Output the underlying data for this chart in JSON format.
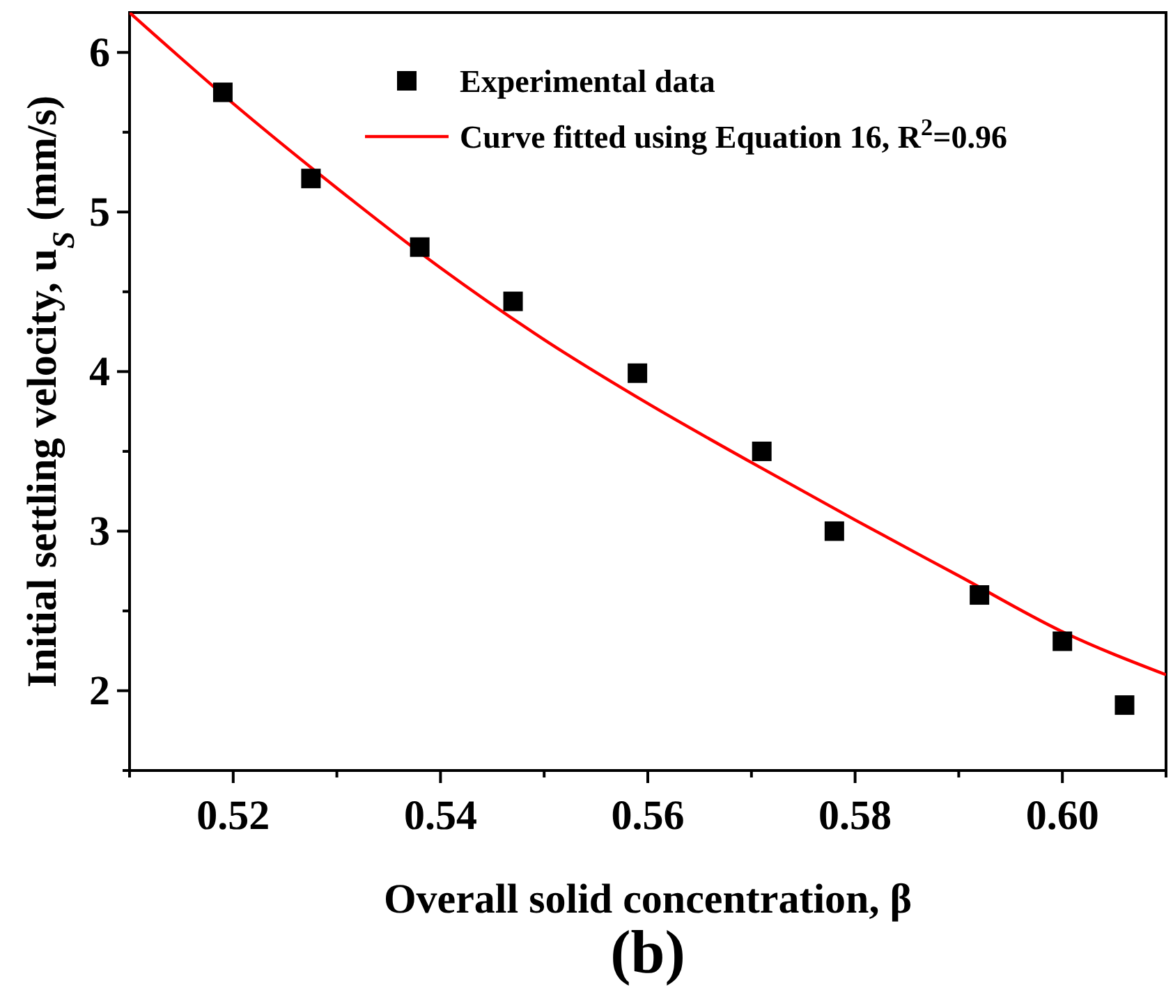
{
  "chart_data": {
    "type": "scatter",
    "xlabel": "Overall solid concentration, β",
    "ylabel": "Initial settling velocity, u$_{S}$ (mm/s)",
    "annotations": [
      "(b)"
    ],
    "xlim": [
      0.51,
      0.61
    ],
    "xticks": [
      {
        "value": 0.51,
        "label": null
      },
      0.52,
      {
        "value": 0.53,
        "label": null
      },
      0.54,
      {
        "value": 0.55,
        "label": null
      },
      0.56,
      {
        "value": 0.57,
        "label": null
      },
      0.58,
      {
        "value": 0.59,
        "label": null
      },
      "0.60",
      {
        "value": 0.61,
        "label": null
      }
    ],
    "ylim": [
      1.5,
      6.25
    ],
    "yticks": [
      {
        "value": 1.5,
        "label": null
      },
      2,
      {
        "value": 2.5,
        "label": null
      },
      3,
      {
        "value": 3.5,
        "label": null
      },
      4,
      {
        "value": 4.5,
        "label": null
      },
      5,
      {
        "value": 5.5,
        "label": null
      },
      6
    ],
    "legend": "top right",
    "grid": false,
    "series": [
      {
        "name": "Experimental data",
        "marker": "square",
        "color": "#000000",
        "x": [
          0.519,
          0.5275,
          0.538,
          0.547,
          0.559,
          0.571,
          0.578,
          0.592,
          0.6,
          0.606
        ],
        "values": [
          5.75,
          5.21,
          4.78,
          4.44,
          3.99,
          3.5,
          3.0,
          2.6,
          2.31,
          1.91
        ]
      },
      {
        "name": "Curve fitted using Equation 16, R$^{2}$=0.96",
        "type": "line",
        "marker": "none",
        "line_style": "solid",
        "color": "#ff0000",
        "x": [
          0.51,
          0.52,
          0.53,
          0.54,
          0.55,
          0.56,
          0.57,
          0.58,
          0.59,
          0.6,
          0.61
        ],
        "values": [
          6.25,
          5.68,
          5.15,
          4.65,
          4.2,
          3.8,
          3.43,
          3.07,
          2.72,
          2.37,
          2.1
        ]
      }
    ]
  }
}
